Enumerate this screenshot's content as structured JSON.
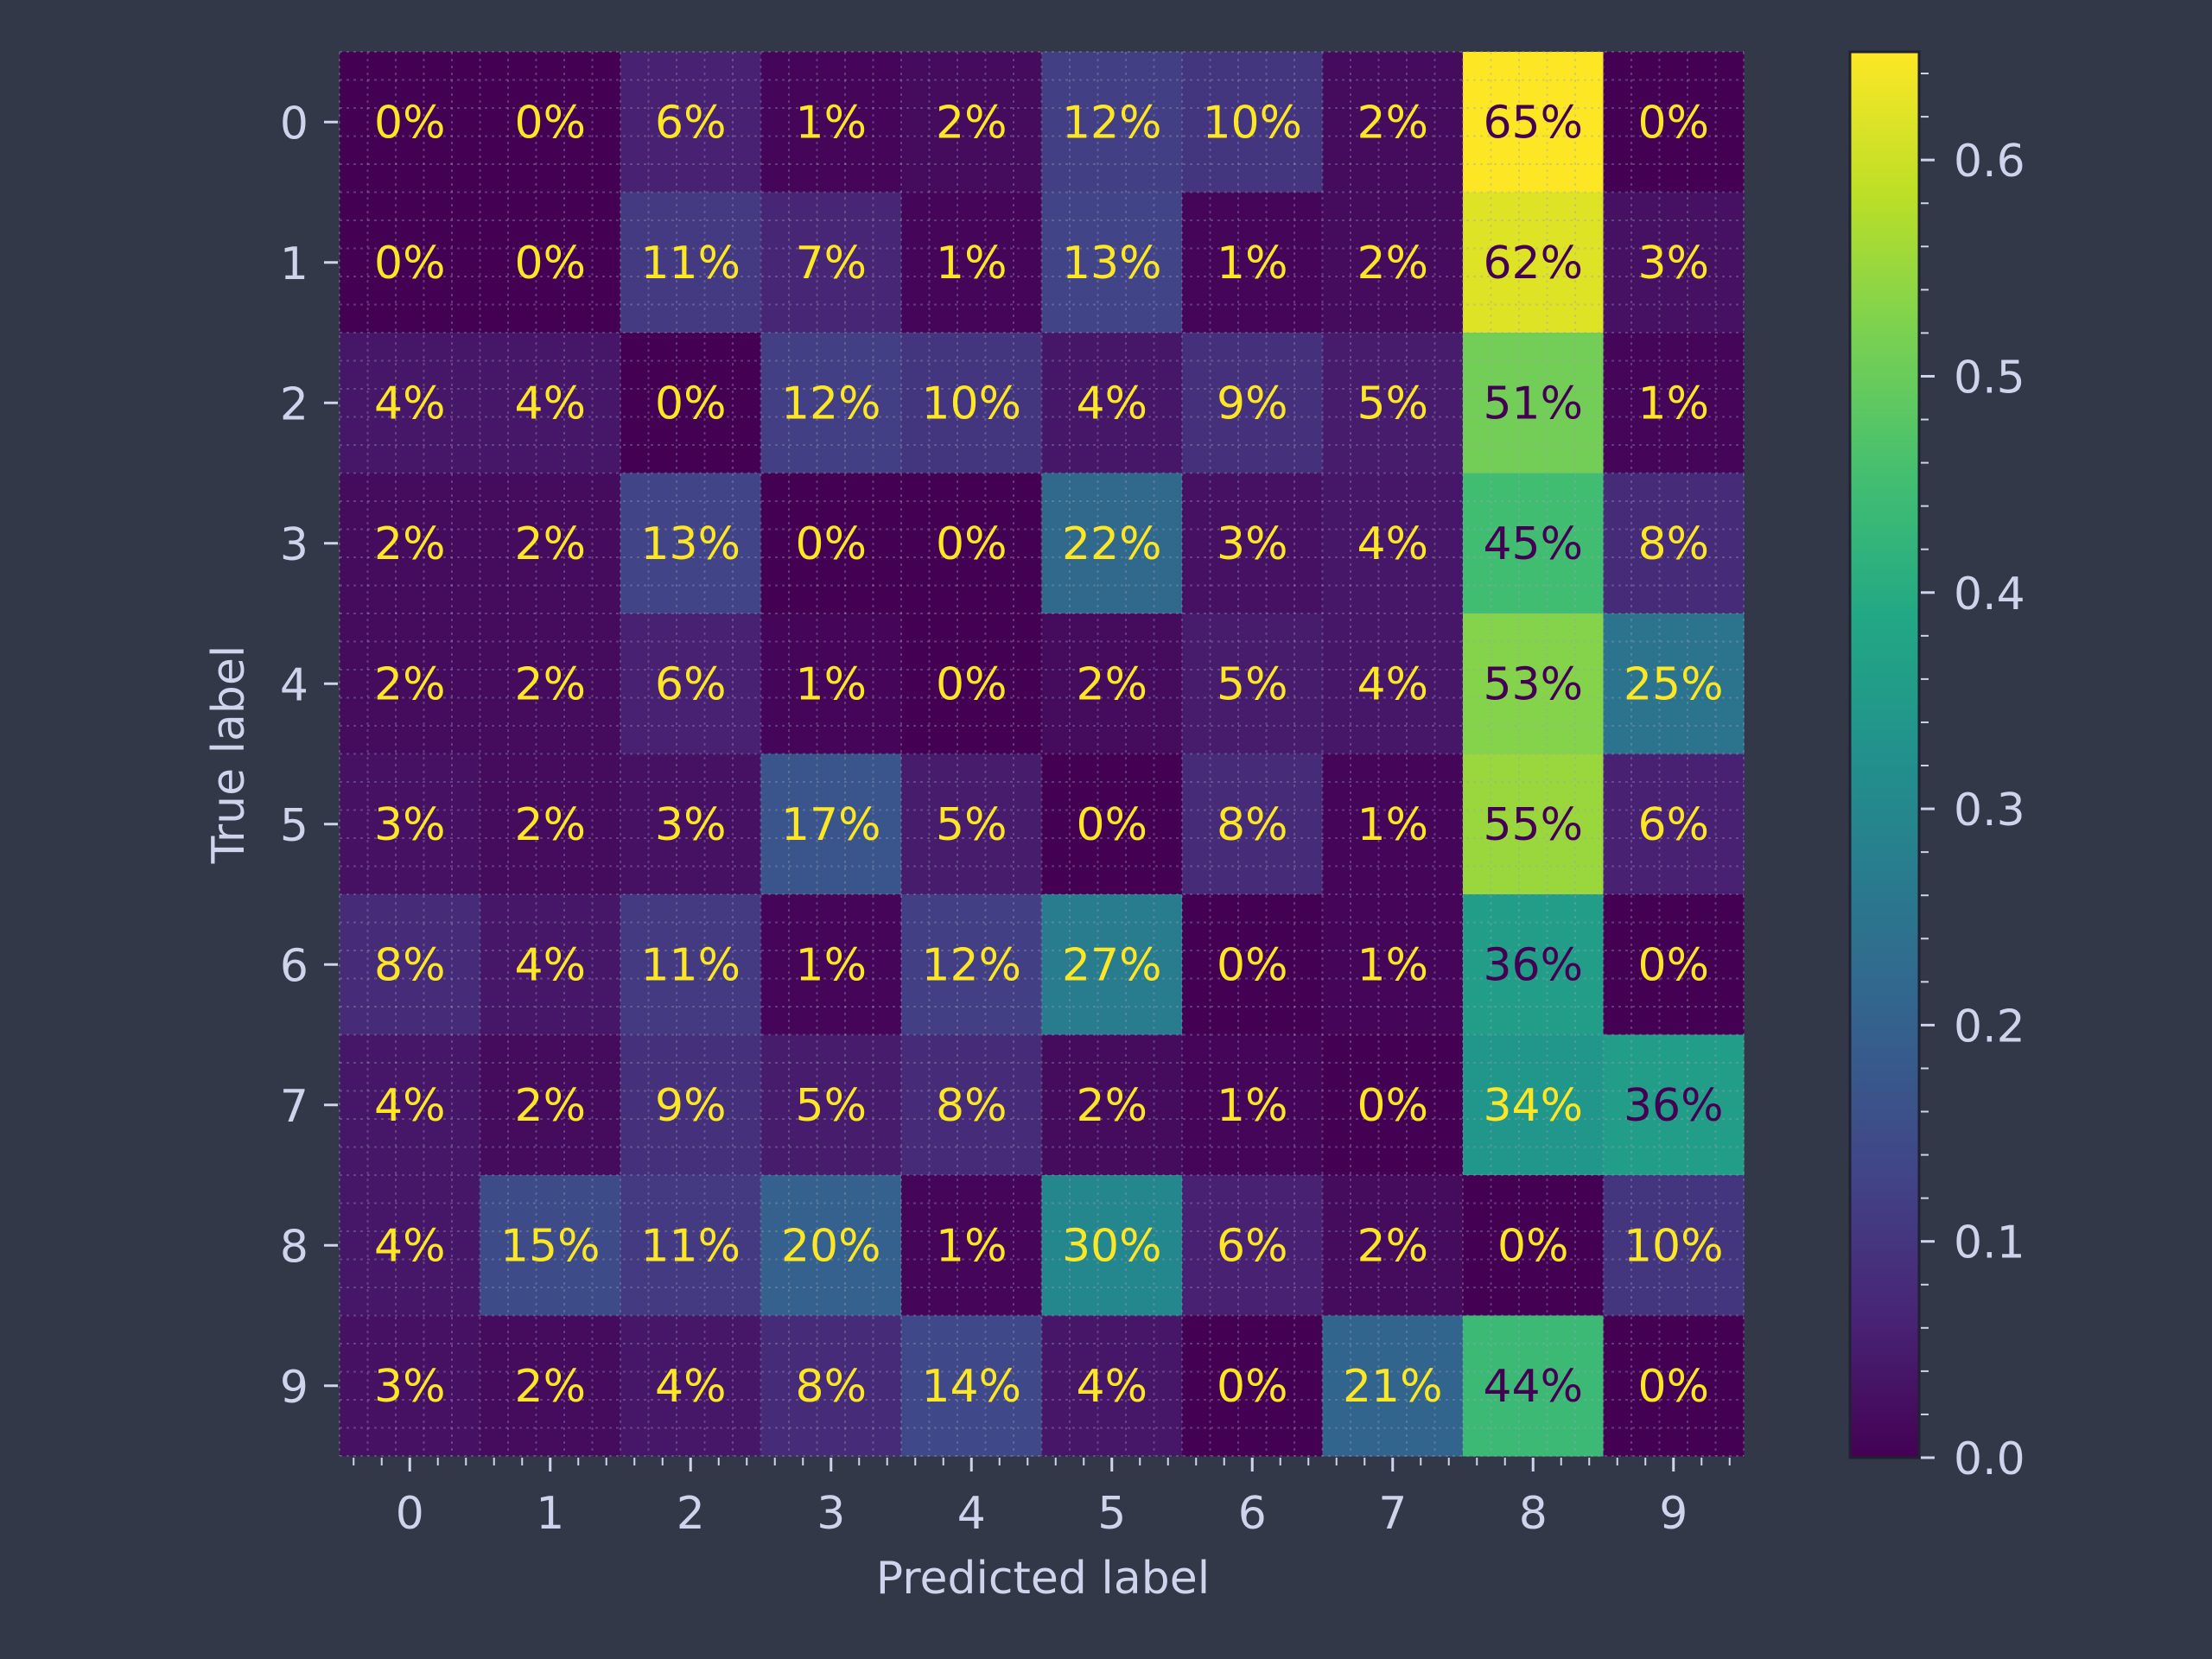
{
  "chart_data": {
    "type": "heatmap",
    "title": "",
    "xlabel": "Predicted label",
    "ylabel": "True label",
    "x_categories": [
      "0",
      "1",
      "2",
      "3",
      "4",
      "5",
      "6",
      "7",
      "8",
      "9"
    ],
    "y_categories": [
      "0",
      "1",
      "2",
      "3",
      "4",
      "5",
      "6",
      "7",
      "8",
      "9"
    ],
    "values": [
      [
        0.0,
        0.0,
        0.06,
        0.01,
        0.02,
        0.12,
        0.1,
        0.02,
        0.65,
        0.0
      ],
      [
        0.0,
        0.0,
        0.11,
        0.07,
        0.01,
        0.13,
        0.01,
        0.02,
        0.62,
        0.03
      ],
      [
        0.04,
        0.04,
        0.0,
        0.12,
        0.1,
        0.04,
        0.09,
        0.05,
        0.51,
        0.01
      ],
      [
        0.02,
        0.02,
        0.13,
        0.0,
        0.0,
        0.22,
        0.03,
        0.04,
        0.45,
        0.08
      ],
      [
        0.02,
        0.02,
        0.06,
        0.01,
        0.0,
        0.02,
        0.05,
        0.04,
        0.53,
        0.25
      ],
      [
        0.03,
        0.02,
        0.03,
        0.17,
        0.05,
        0.0,
        0.08,
        0.01,
        0.55,
        0.06
      ],
      [
        0.08,
        0.04,
        0.11,
        0.01,
        0.12,
        0.27,
        0.0,
        0.01,
        0.36,
        0.0
      ],
      [
        0.04,
        0.02,
        0.09,
        0.05,
        0.08,
        0.02,
        0.01,
        0.0,
        0.34,
        0.36
      ],
      [
        0.04,
        0.15,
        0.11,
        0.2,
        0.01,
        0.3,
        0.06,
        0.02,
        0.0,
        0.1
      ],
      [
        0.03,
        0.02,
        0.04,
        0.08,
        0.14,
        0.04,
        0.0,
        0.21,
        0.44,
        0.0
      ]
    ],
    "cell_labels": [
      [
        "0%",
        "0%",
        "6%",
        "1%",
        "2%",
        "12%",
        "10%",
        "2%",
        "65%",
        "0%"
      ],
      [
        "0%",
        "0%",
        "11%",
        "7%",
        "1%",
        "13%",
        "1%",
        "2%",
        "62%",
        "3%"
      ],
      [
        "4%",
        "4%",
        "0%",
        "12%",
        "10%",
        "4%",
        "9%",
        "5%",
        "51%",
        "1%"
      ],
      [
        "2%",
        "2%",
        "13%",
        "0%",
        "0%",
        "22%",
        "3%",
        "4%",
        "45%",
        "8%"
      ],
      [
        "2%",
        "2%",
        "6%",
        "1%",
        "0%",
        "2%",
        "5%",
        "4%",
        "53%",
        "25%"
      ],
      [
        "3%",
        "2%",
        "3%",
        "17%",
        "5%",
        "0%",
        "8%",
        "1%",
        "55%",
        "6%"
      ],
      [
        "8%",
        "4%",
        "11%",
        "1%",
        "12%",
        "27%",
        "0%",
        "1%",
        "36%",
        "0%"
      ],
      [
        "4%",
        "2%",
        "9%",
        "5%",
        "8%",
        "2%",
        "1%",
        "0%",
        "34%",
        "36%"
      ],
      [
        "4%",
        "15%",
        "11%",
        "20%",
        "1%",
        "30%",
        "6%",
        "2%",
        "0%",
        "10%"
      ],
      [
        "3%",
        "2%",
        "4%",
        "8%",
        "14%",
        "4%",
        "0%",
        "21%",
        "44%",
        "0%"
      ]
    ],
    "colormap": "viridis",
    "colorbar": {
      "range": [
        0.0,
        0.65
      ],
      "ticks": [
        0.0,
        0.1,
        0.2,
        0.3,
        0.4,
        0.5,
        0.6
      ],
      "tick_labels": [
        "0.0",
        "0.1",
        "0.2",
        "0.3",
        "0.4",
        "0.5",
        "0.6"
      ]
    },
    "grid": true,
    "colors": {
      "background": "#333849",
      "text": "#cfd3ec",
      "label_light": "#fde725",
      "label_dark": "#440154",
      "grid": "#9aa0b8"
    }
  }
}
